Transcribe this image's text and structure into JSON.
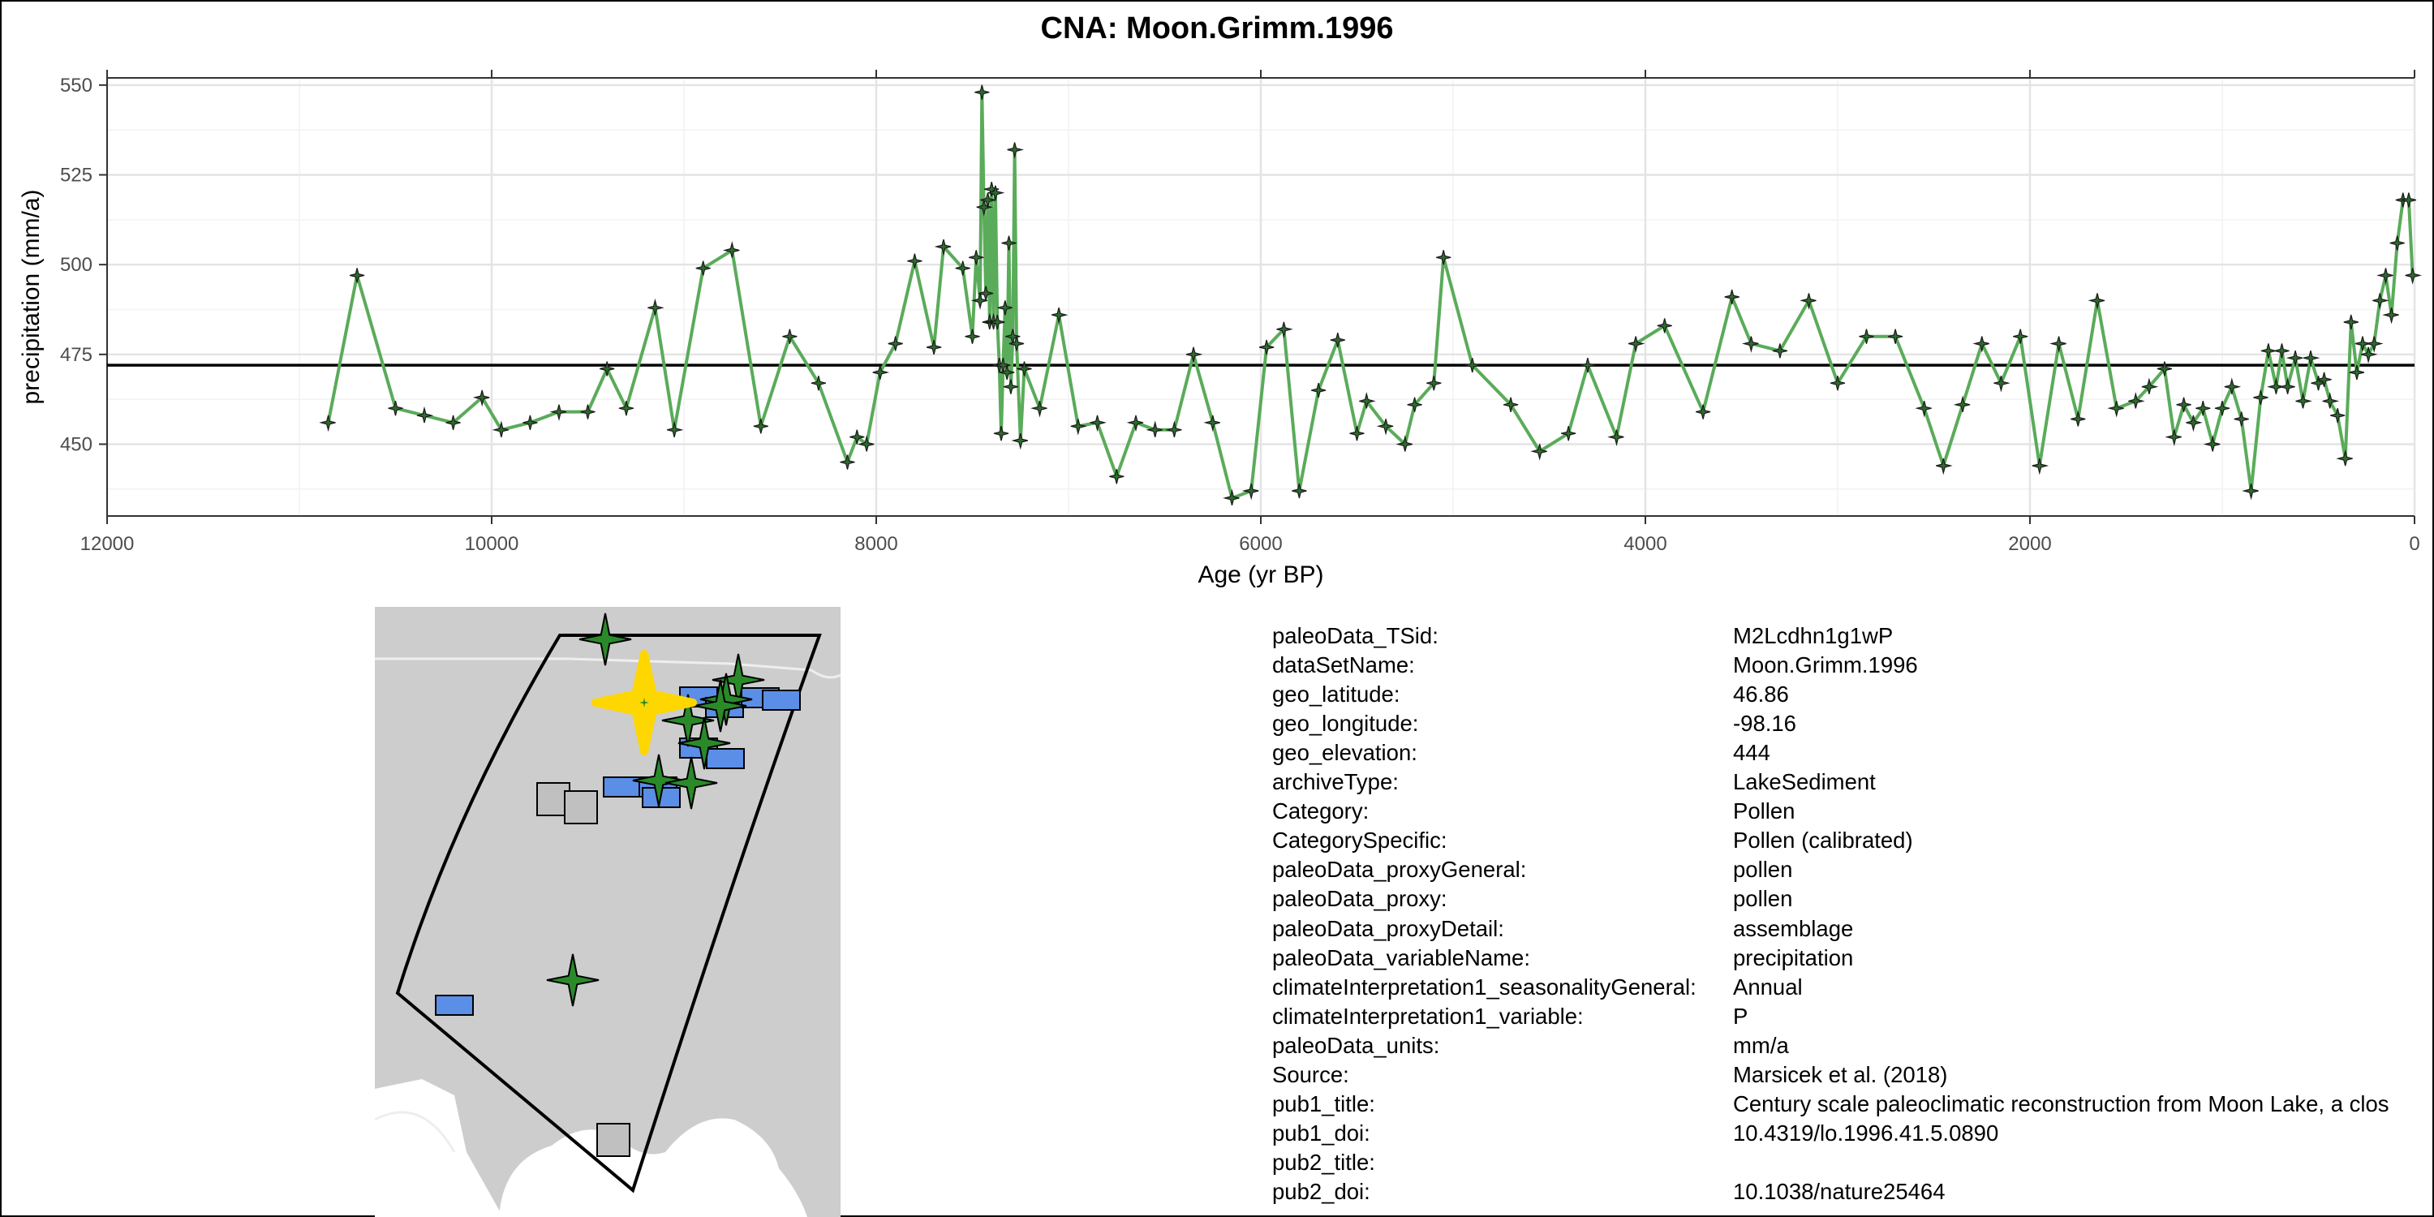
{
  "title": "CNA: Moon.Grimm.1996",
  "chart_data": {
    "type": "line",
    "title": "CNA: Moon.Grimm.1996",
    "xlabel": "Age (yr BP)",
    "ylabel": "precipitation (mm/a)",
    "xlim": [
      12000,
      0
    ],
    "ylim": [
      430,
      552
    ],
    "x_reversed": true,
    "xticks": [
      12000,
      10000,
      8000,
      6000,
      4000,
      2000,
      0
    ],
    "yticks": [
      450,
      475,
      500,
      525,
      550
    ],
    "grid": true,
    "reference_line": 472,
    "series": [
      {
        "color": "#5aab5a",
        "marker": "star4",
        "points": [
          [
            10850,
            456
          ],
          [
            10700,
            497
          ],
          [
            10500,
            460
          ],
          [
            10350,
            458
          ],
          [
            10200,
            456
          ],
          [
            10050,
            463
          ],
          [
            9950,
            454
          ],
          [
            9800,
            456
          ],
          [
            9650,
            459
          ],
          [
            9500,
            459
          ],
          [
            9400,
            471
          ],
          [
            9300,
            460
          ],
          [
            9150,
            488
          ],
          [
            9050,
            454
          ],
          [
            8900,
            499
          ],
          [
            8750,
            504
          ],
          [
            8600,
            455
          ],
          [
            8450,
            480
          ],
          [
            8300,
            467
          ],
          [
            8150,
            445
          ],
          [
            8100,
            452
          ],
          [
            8050,
            450
          ],
          [
            7980,
            470
          ],
          [
            7900,
            478
          ],
          [
            7800,
            501
          ],
          [
            7700,
            477
          ],
          [
            7650,
            505
          ],
          [
            7550,
            499
          ],
          [
            7500,
            480
          ],
          [
            7480,
            502
          ],
          [
            7460,
            490
          ],
          [
            7450,
            548
          ],
          [
            7440,
            516
          ],
          [
            7430,
            492
          ],
          [
            7420,
            518
          ],
          [
            7410,
            484
          ],
          [
            7400,
            521
          ],
          [
            7390,
            484
          ],
          [
            7380,
            520
          ],
          [
            7370,
            484
          ],
          [
            7360,
            472
          ],
          [
            7350,
            453
          ],
          [
            7340,
            472
          ],
          [
            7330,
            488
          ],
          [
            7320,
            470
          ],
          [
            7310,
            506
          ],
          [
            7300,
            466
          ],
          [
            7290,
            480
          ],
          [
            7280,
            532
          ],
          [
            7270,
            478
          ],
          [
            7250,
            451
          ],
          [
            7230,
            471
          ],
          [
            7150,
            460
          ],
          [
            7050,
            486
          ],
          [
            6950,
            455
          ],
          [
            6850,
            456
          ],
          [
            6750,
            441
          ],
          [
            6650,
            456
          ],
          [
            6550,
            454
          ],
          [
            6450,
            454
          ],
          [
            6350,
            475
          ],
          [
            6250,
            456
          ],
          [
            6150,
            435
          ],
          [
            6050,
            437
          ],
          [
            5970,
            477
          ],
          [
            5880,
            482
          ],
          [
            5800,
            437
          ],
          [
            5700,
            465
          ],
          [
            5600,
            479
          ],
          [
            5500,
            453
          ],
          [
            5450,
            462
          ],
          [
            5350,
            455
          ],
          [
            5250,
            450
          ],
          [
            5200,
            461
          ],
          [
            5100,
            467
          ],
          [
            5050,
            502
          ],
          [
            4900,
            472
          ],
          [
            4700,
            461
          ],
          [
            4550,
            448
          ],
          [
            4400,
            453
          ],
          [
            4300,
            472
          ],
          [
            4150,
            452
          ],
          [
            4050,
            478
          ],
          [
            3900,
            483
          ],
          [
            3700,
            459
          ],
          [
            3550,
            491
          ],
          [
            3450,
            478
          ],
          [
            3300,
            476
          ],
          [
            3150,
            490
          ],
          [
            3000,
            467
          ],
          [
            2850,
            480
          ],
          [
            2700,
            480
          ],
          [
            2550,
            460
          ],
          [
            2450,
            444
          ],
          [
            2350,
            461
          ],
          [
            2250,
            478
          ],
          [
            2150,
            467
          ],
          [
            2050,
            480
          ],
          [
            1950,
            444
          ],
          [
            1850,
            478
          ],
          [
            1750,
            457
          ],
          [
            1650,
            490
          ],
          [
            1550,
            460
          ],
          [
            1450,
            462
          ],
          [
            1380,
            466
          ],
          [
            1300,
            471
          ],
          [
            1250,
            452
          ],
          [
            1200,
            461
          ],
          [
            1150,
            456
          ],
          [
            1100,
            460
          ],
          [
            1050,
            450
          ],
          [
            1000,
            460
          ],
          [
            950,
            466
          ],
          [
            900,
            457
          ],
          [
            850,
            437
          ],
          [
            800,
            463
          ],
          [
            760,
            476
          ],
          [
            720,
            466
          ],
          [
            690,
            476
          ],
          [
            660,
            466
          ],
          [
            620,
            474
          ],
          [
            580,
            462
          ],
          [
            540,
            474
          ],
          [
            500,
            467
          ],
          [
            470,
            468
          ],
          [
            440,
            462
          ],
          [
            400,
            458
          ],
          [
            360,
            446
          ],
          [
            330,
            484
          ],
          [
            300,
            470
          ],
          [
            270,
            478
          ],
          [
            240,
            475
          ],
          [
            210,
            478
          ],
          [
            180,
            490
          ],
          [
            150,
            497
          ],
          [
            120,
            486
          ],
          [
            90,
            506
          ],
          [
            60,
            518
          ],
          [
            30,
            518
          ],
          [
            10,
            497
          ]
        ]
      }
    ]
  },
  "map": {
    "features": [
      {
        "kind": "site-star",
        "color": "#2a8a2a"
      },
      {
        "kind": "target-star",
        "color": "#ffd700"
      },
      {
        "kind": "site-rect",
        "color": "#5b8ee6"
      },
      {
        "kind": "site-square",
        "color": "#c0c0c0"
      }
    ]
  },
  "metadata": [
    {
      "key": "paleoData_TSid:",
      "value": "M2Lcdhn1g1wP"
    },
    {
      "key": "dataSetName:",
      "value": "Moon.Grimm.1996"
    },
    {
      "key": "geo_latitude:",
      "value": "46.86"
    },
    {
      "key": "geo_longitude:",
      "value": "-98.16"
    },
    {
      "key": "geo_elevation:",
      "value": "444"
    },
    {
      "key": "archiveType:",
      "value": "LakeSediment"
    },
    {
      "key": "Category:",
      "value": "Pollen"
    },
    {
      "key": "CategorySpecific:",
      "value": "Pollen (calibrated)"
    },
    {
      "key": "paleoData_proxyGeneral:",
      "value": "pollen"
    },
    {
      "key": "paleoData_proxy:",
      "value": "pollen"
    },
    {
      "key": "paleoData_proxyDetail:",
      "value": "assemblage"
    },
    {
      "key": "paleoData_variableName:",
      "value": "precipitation"
    },
    {
      "key": "climateInterpretation1_seasonalityGeneral:",
      "value": "Annual"
    },
    {
      "key": "climateInterpretation1_variable:",
      "value": "P"
    },
    {
      "key": "paleoData_units:",
      "value": "mm/a"
    },
    {
      "key": "Source:",
      "value": "Marsicek et al. (2018)"
    },
    {
      "key": "pub1_title:",
      "value": "Century scale paleoclimatic reconstruction from Moon Lake, a clos"
    },
    {
      "key": "pub1_doi:",
      "value": "10.4319/lo.1996.41.5.0890"
    },
    {
      "key": "pub2_title:",
      "value": ""
    },
    {
      "key": "pub2_doi:",
      "value": "10.1038/nature25464"
    }
  ]
}
